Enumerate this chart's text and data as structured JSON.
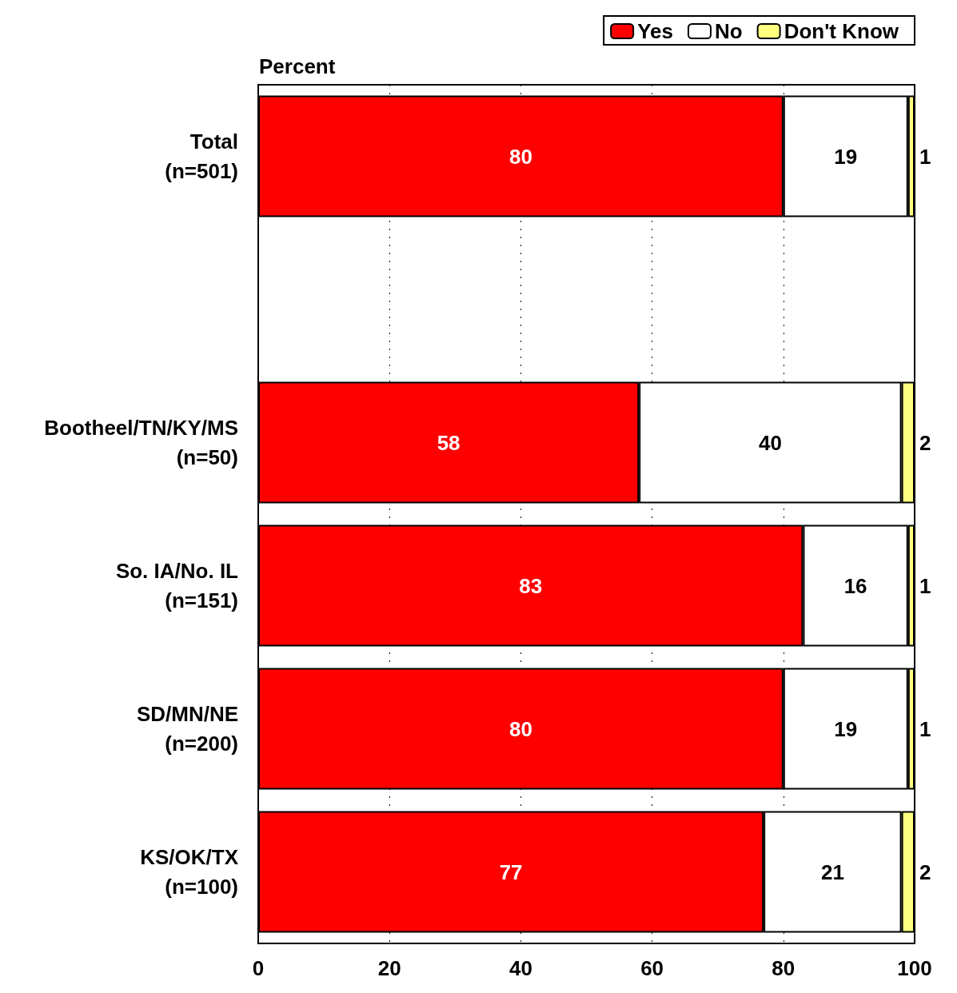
{
  "chart_data": {
    "type": "bar",
    "orientation": "horizontal",
    "stacked": true,
    "xlabel": "Percent",
    "categories": [
      "Total\n(n=501)",
      null,
      "Bootheel/TN/KY/MS\n(n=50)",
      "So. IA/No. IL\n(n=151)",
      "SD/MN/NE\n(n=200)",
      "KS/OK/TX\n(n=100)"
    ],
    "series": [
      {
        "name": "Yes",
        "color": "#ff0000",
        "values": [
          80,
          null,
          58,
          83,
          80,
          77
        ]
      },
      {
        "name": "No",
        "color": "#ffffff",
        "values": [
          19,
          null,
          40,
          16,
          19,
          21
        ]
      },
      {
        "name": "Don't Know",
        "color": "#ffff80",
        "values": [
          1,
          null,
          2,
          1,
          1,
          2
        ]
      }
    ],
    "xlim": [
      0,
      100
    ],
    "xticks": [
      0,
      20,
      40,
      60,
      80,
      100
    ],
    "grid": "x",
    "legend": "top right",
    "data_labels": true
  }
}
